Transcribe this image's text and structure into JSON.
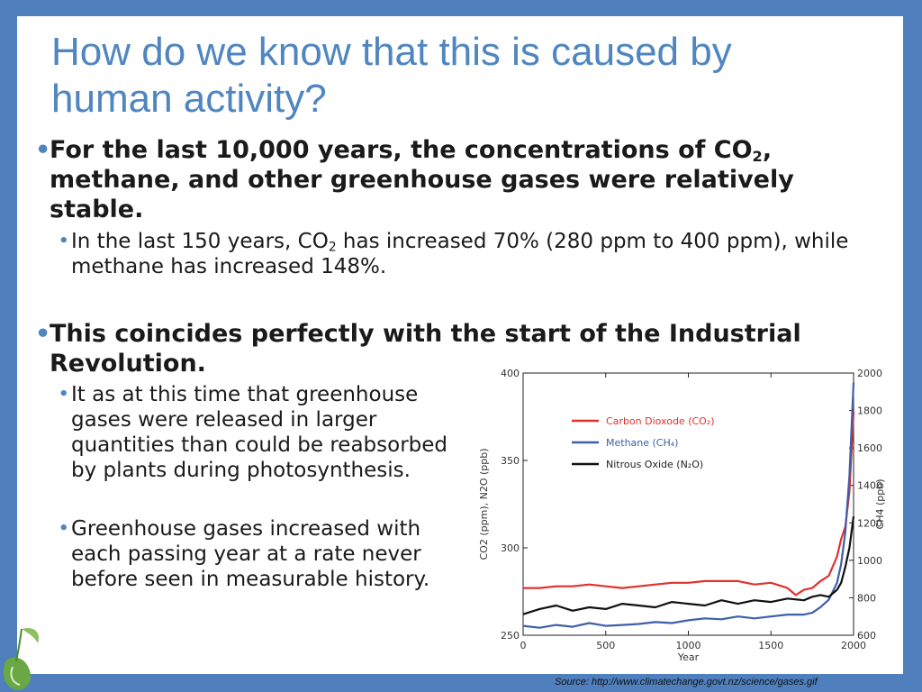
{
  "slide": {
    "title": "How do we know that this is caused by human activity?",
    "bullets": [
      {
        "text_a": "For the last 10,000 years, the concentrations of CO",
        "sub": "2",
        "text_b": ", methane, and other greenhouse gases were relatively stable.",
        "children": [
          {
            "text_a": "In the last 150 years, CO",
            "sub": "2",
            "text_b": " has increased 70% (280 ppm to 400 ppm), while methane has increased 148%."
          }
        ]
      },
      {
        "text": "This coincides perfectly with the start of the Industrial Revolution.",
        "children": [
          {
            "text": "It as at this time that greenhouse gases were released in larger quantities than could be reabsorbed by plants during photosynthesis."
          },
          {
            "text": "Greenhouse gases increased with each passing year at a rate never before seen in measurable history."
          }
        ]
      }
    ],
    "source": "Source: http://www.climatechange.govt.nz/science/gases.gif",
    "bullet_color": "#4f86c1",
    "frame_color": "#4f7fbd"
  },
  "chart_data": {
    "type": "line",
    "xlabel": "Year",
    "ylabel_left": "CO2 (ppm), N2O (ppb)",
    "ylabel_right": "CH4 (ppb)",
    "xlim": [
      0,
      2000
    ],
    "ylim_left": [
      250,
      400
    ],
    "ylim_right": [
      600,
      2000
    ],
    "x_ticks": [
      "0",
      "500",
      "1000",
      "1500",
      "2000"
    ],
    "y_ticks_left": [
      "250",
      "300",
      "350",
      "400"
    ],
    "y_ticks_right": [
      "600",
      "800",
      "1000",
      "1200",
      "1400",
      "1600",
      "1800",
      "2000"
    ],
    "legend": [
      {
        "name": "Carbon Dioxode (CO₂)",
        "color": "#e0312e"
      },
      {
        "name": "Methane (CH₄)",
        "color": "#3e5fa8"
      },
      {
        "name": "Nitrous Oxide (N₂O)",
        "color": "#111111"
      }
    ],
    "series": [
      {
        "name": "Carbon Dioxode (CO₂)",
        "color": "#e0312e",
        "axis": "left",
        "x": [
          0,
          100,
          200,
          300,
          400,
          500,
          600,
          700,
          800,
          900,
          1000,
          1100,
          1200,
          1300,
          1400,
          1500,
          1600,
          1650,
          1700,
          1750,
          1800,
          1850,
          1900,
          1925,
          1950,
          1975,
          2000
        ],
        "y": [
          277,
          277,
          278,
          278,
          279,
          278,
          277,
          278,
          279,
          280,
          280,
          281,
          281,
          281,
          279,
          280,
          277,
          273,
          276,
          277,
          281,
          284,
          295,
          305,
          312,
          332,
          378
        ]
      },
      {
        "name": "Methane (CH₄)",
        "color": "#3e5fa8",
        "axis": "right",
        "x": [
          0,
          100,
          200,
          300,
          400,
          500,
          600,
          700,
          800,
          900,
          1000,
          1100,
          1200,
          1300,
          1400,
          1500,
          1600,
          1700,
          1750,
          1800,
          1850,
          1900,
          1925,
          1950,
          1975,
          2000
        ],
        "y": [
          650,
          640,
          655,
          645,
          665,
          650,
          655,
          660,
          670,
          665,
          680,
          690,
          685,
          700,
          690,
          700,
          710,
          710,
          720,
          750,
          790,
          880,
          980,
          1150,
          1450,
          1950
        ]
      },
      {
        "name": "Nitrous Oxide (N₂O)",
        "color": "#111111",
        "axis": "left",
        "x": [
          0,
          100,
          200,
          300,
          400,
          500,
          600,
          700,
          800,
          900,
          1000,
          1100,
          1200,
          1300,
          1400,
          1500,
          1600,
          1700,
          1750,
          1800,
          1850,
          1900,
          1925,
          1950,
          1975,
          2000
        ],
        "y": [
          262,
          265,
          267,
          264,
          266,
          265,
          268,
          267,
          266,
          269,
          268,
          267,
          270,
          268,
          270,
          269,
          271,
          270,
          272,
          273,
          272,
          276,
          280,
          289,
          300,
          318
        ]
      }
    ]
  }
}
